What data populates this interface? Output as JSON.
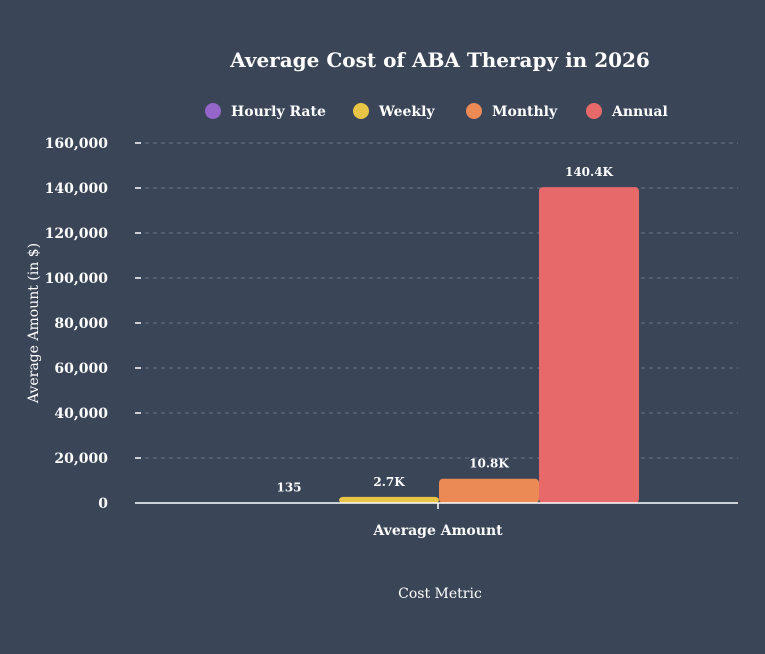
{
  "chart_data": {
    "type": "bar",
    "title": "Average Cost of ABA Therapy in 2026",
    "categories": [
      "Average Amount"
    ],
    "xlabel": "Cost Metric",
    "ylabel": "Average Amount (in $)",
    "ylim": [
      0,
      160000
    ],
    "yticks": [
      0,
      20000,
      40000,
      60000,
      80000,
      100000,
      120000,
      140000,
      160000
    ],
    "ytick_labels": [
      "0",
      "20,000",
      "40,000",
      "60,000",
      "80,000",
      "100,000",
      "120,000",
      "140,000",
      "160,000"
    ],
    "grid": true,
    "legend_position": "top",
    "series": [
      {
        "name": "Hourly Rate",
        "values": [
          135
        ],
        "color": "#9466c9",
        "label": "135"
      },
      {
        "name": "Weekly",
        "values": [
          2700
        ],
        "color": "#e8c547",
        "label": "2.7K"
      },
      {
        "name": "Monthly",
        "values": [
          10800
        ],
        "color": "#ec8a55",
        "label": "10.8K"
      },
      {
        "name": "Annual",
        "values": [
          140400
        ],
        "color": "#e8696a",
        "label": "140.4K"
      }
    ]
  }
}
